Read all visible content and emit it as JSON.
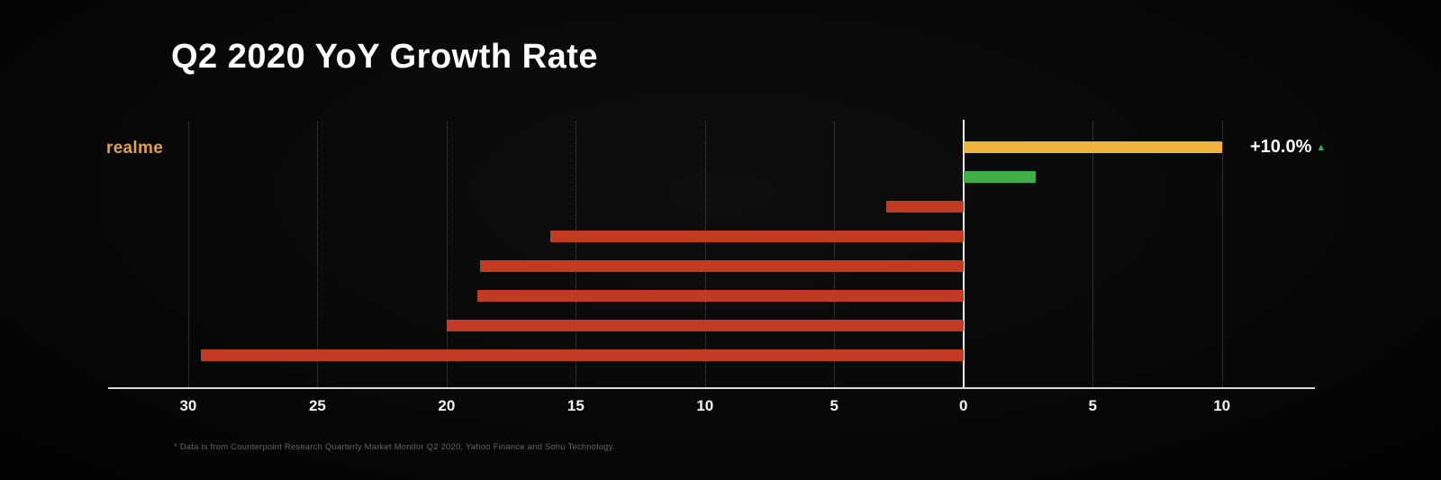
{
  "header": {
    "title": "Q2 2020 YoY Growth Rate"
  },
  "chart_data": {
    "type": "bar",
    "orientation": "horizontal-diverging",
    "title": "Q2 2020 YoY Growth Rate",
    "axis": {
      "min": -33.1,
      "max": 13.6,
      "ticks": [
        -30,
        -25,
        -20,
        -15,
        -10,
        -5,
        0,
        5,
        10
      ],
      "tick_labels": [
        "30",
        "25",
        "20",
        "15",
        "10",
        "5",
        "0",
        "5",
        "10"
      ],
      "gridlines": "dotted-vertical",
      "zero_line": true
    },
    "bars": [
      {
        "label": "realme",
        "value": 10.0,
        "color": "#f0b43e",
        "annotation": "+10.0%"
      },
      {
        "label": "",
        "value": 2.8,
        "color": "#3fae49"
      },
      {
        "label": "",
        "value": -3.0,
        "color": "#c23a22"
      },
      {
        "label": "",
        "value": -16.0,
        "color": "#c23a22"
      },
      {
        "label": "",
        "value": -18.7,
        "color": "#c23a22"
      },
      {
        "label": "",
        "value": -18.8,
        "color": "#c23a22"
      },
      {
        "label": "",
        "value": -20.0,
        "color": "#c23a22"
      },
      {
        "label": "",
        "value": -29.5,
        "color": "#c23a22"
      }
    ],
    "series_label": "realme",
    "series_label_color": "#dfa14c",
    "annotation_icon": "up-triangle",
    "annotation_icon_color": "#3fae49",
    "legend": "none"
  },
  "annotation": {
    "value": "+10.0%",
    "icon": "▲"
  },
  "footnote": "* Data is from Counterpoint Research Quarterly Market Monitor Q2 2020, Yahoo Finance and Sohu Technology."
}
